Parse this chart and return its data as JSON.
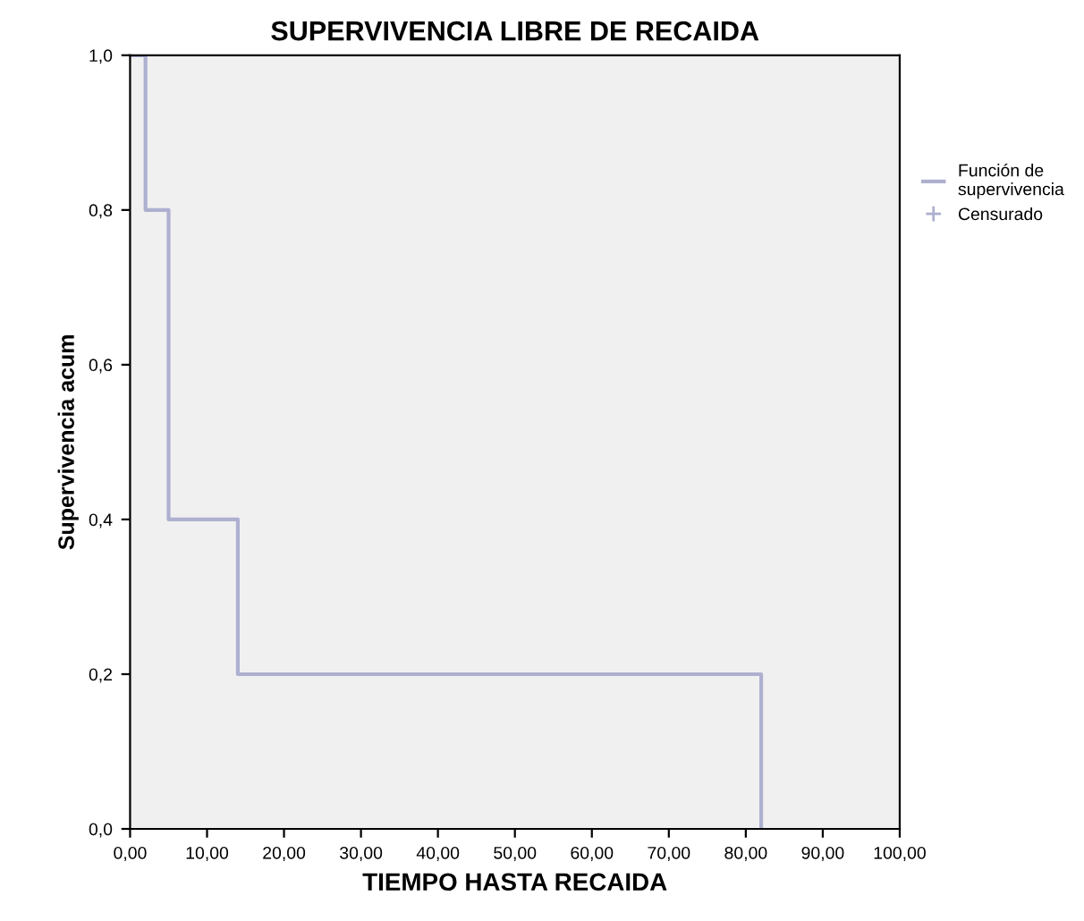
{
  "chart_data": {
    "type": "step",
    "title": "SUPERVIVENCIA LIBRE DE RECAIDA",
    "xlabel": "TIEMPO HASTA RECAIDA",
    "ylabel": "Supervivencia acum",
    "series": [
      {
        "name": "Función de supervivencia",
        "color": "#aeb0d0",
        "x": [
          0,
          2,
          5,
          14,
          82
        ],
        "values": [
          1.0,
          0.8,
          0.4,
          0.2,
          0.0
        ]
      },
      {
        "name": "Censurado",
        "type": "scatter",
        "marker": "cross",
        "color": "#aeb0d0"
      }
    ],
    "xlim": [
      0,
      100
    ],
    "ylim": [
      0,
      1
    ],
    "xticks": [
      {
        "value": 0,
        "label": "0,00"
      },
      {
        "value": 10,
        "label": "10,00"
      },
      {
        "value": 20,
        "label": "20,00"
      },
      {
        "value": 30,
        "label": "30,00"
      },
      {
        "value": 40,
        "label": "40,00"
      },
      {
        "value": 50,
        "label": "50,00"
      },
      {
        "value": 60,
        "label": "60,00"
      },
      {
        "value": 70,
        "label": "70,00"
      },
      {
        "value": 80,
        "label": "80,00"
      },
      {
        "value": 90,
        "label": "90,00"
      },
      {
        "value": 100,
        "label": "100,00"
      }
    ],
    "yticks": [
      {
        "value": 0,
        "label": "0,0"
      },
      {
        "value": 0.2,
        "label": "0,2"
      },
      {
        "value": 0.4,
        "label": "0,4"
      },
      {
        "value": 0.6,
        "label": "0,6"
      },
      {
        "value": 0.8,
        "label": "0,8"
      },
      {
        "value": 1.0,
        "label": "1,0"
      }
    ],
    "grid": false,
    "legend": "top right"
  }
}
